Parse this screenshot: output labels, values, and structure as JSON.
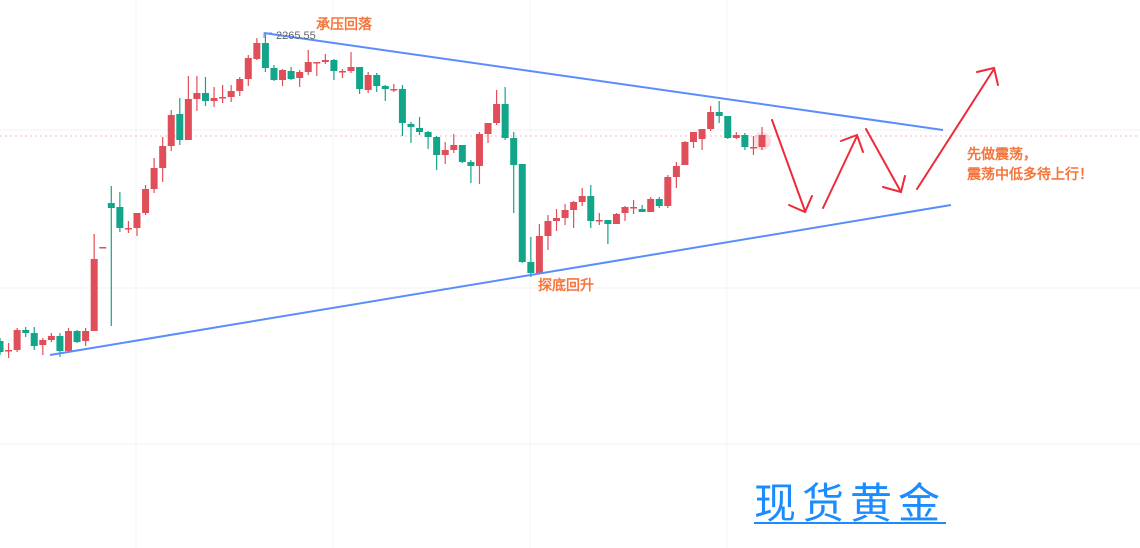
{
  "chart_data": {
    "type": "candlestick",
    "title": "",
    "up_color": "#e04e5a",
    "down_color": "#12a58a",
    "trendline_color": "#5b8cff",
    "arrow_color": "#ee2a3a",
    "annotation_color": "#f5763d",
    "grid": true,
    "high_label": "2265.55",
    "current_price_line": 2214.6,
    "candles_ohlc": [
      [
        2112.1,
        2113.6,
        2105.1,
        2106.6
      ],
      [
        2107.6,
        2111.1,
        2103.6,
        2107.6
      ],
      [
        2107.6,
        2118.6,
        2106.6,
        2117.6
      ],
      [
        2117.6,
        2119.1,
        2114.1,
        2116.1
      ],
      [
        2116.1,
        2119.1,
        2107.6,
        2109.6
      ],
      [
        2110.1,
        2113.6,
        2105.1,
        2112.6
      ],
      [
        2112.6,
        2116.1,
        2111.6,
        2114.6
      ],
      [
        2114.6,
        2116.1,
        2104.1,
        2107.1
      ],
      [
        2107.1,
        2118.6,
        2106.1,
        2117.1
      ],
      [
        2117.1,
        2117.6,
        2111.1,
        2111.6
      ],
      [
        2112.1,
        2118.6,
        2109.6,
        2117.1
      ],
      [
        2117.1,
        2165.6,
        2117.1,
        2153.1
      ],
      [
        2159.1,
        2159.1,
        2159.1,
        2159.1
      ],
      [
        2181.1,
        2189.6,
        2119.6,
        2178.6
      ],
      [
        2179.1,
        2186.6,
        2166.6,
        2168.6
      ],
      [
        2168.6,
        2172.1,
        2166.1,
        2168.6
      ],
      [
        2168.6,
        2176.1,
        2164.6,
        2176.1
      ],
      [
        2176.1,
        2190.1,
        2175.1,
        2188.1
      ],
      [
        2188.1,
        2203.6,
        2186.1,
        2198.6
      ],
      [
        2198.6,
        2214.1,
        2191.6,
        2209.6
      ],
      [
        2209.6,
        2227.6,
        2207.1,
        2225.1
      ],
      [
        2225.6,
        2233.6,
        2210.1,
        2212.6
      ],
      [
        2212.6,
        2244.6,
        2212.6,
        2233.1
      ],
      [
        2233.1,
        2244.6,
        2227.1,
        2236.1
      ],
      [
        2236.1,
        2244.1,
        2229.6,
        2232.1
      ],
      [
        2232.1,
        2239.1,
        2229.1,
        2233.6
      ],
      [
        2234.1,
        2240.1,
        2231.1,
        2234.1
      ],
      [
        2234.1,
        2240.1,
        2231.6,
        2237.1
      ],
      [
        2237.1,
        2244.1,
        2234.6,
        2243.1
      ],
      [
        2243.1,
        2255.1,
        2239.6,
        2253.6
      ],
      [
        2253.1,
        2263.6,
        2252.6,
        2261.1
      ],
      [
        2261.1,
        2265.6,
        2246.6,
        2248.6
      ],
      [
        2248.6,
        2250.1,
        2242.1,
        2242.6
      ],
      [
        2242.6,
        2248.1,
        2239.6,
        2247.6
      ],
      [
        2247.1,
        2249.1,
        2242.6,
        2243.1
      ],
      [
        2243.6,
        2247.6,
        2239.1,
        2246.6
      ],
      [
        2246.6,
        2257.6,
        2245.1,
        2251.6
      ],
      [
        2251.6,
        2251.6,
        2244.6,
        2251.6
      ],
      [
        2251.6,
        2255.6,
        2250.6,
        2252.6
      ],
      [
        2252.6,
        2253.1,
        2242.6,
        2247.1
      ],
      [
        2247.1,
        2248.1,
        2243.6,
        2247.1
      ],
      [
        2247.1,
        2256.6,
        2246.1,
        2249.1
      ],
      [
        2249.1,
        2249.1,
        2235.6,
        2238.1
      ],
      [
        2237.6,
        2246.6,
        2236.1,
        2245.1
      ],
      [
        2245.1,
        2246.1,
        2236.6,
        2239.6
      ],
      [
        2239.6,
        2240.1,
        2232.1,
        2238.1
      ],
      [
        2238.1,
        2240.6,
        2236.6,
        2238.1
      ],
      [
        2238.1,
        2240.1,
        2214.6,
        2221.1
      ],
      [
        2220.6,
        2221.6,
        2211.1,
        2219.1
      ],
      [
        2218.6,
        2224.1,
        2215.1,
        2216.6
      ],
      [
        2216.6,
        2217.1,
        2208.1,
        2214.1
      ],
      [
        2214.1,
        2214.6,
        2197.6,
        2205.1
      ],
      [
        2205.1,
        2211.6,
        2200.6,
        2207.6
      ],
      [
        2207.6,
        2215.6,
        2206.1,
        2210.1
      ],
      [
        2210.1,
        2210.1,
        2201.1,
        2201.6
      ],
      [
        2201.6,
        2202.6,
        2191.1,
        2199.6
      ],
      [
        2199.6,
        2216.6,
        2190.6,
        2215.6
      ],
      [
        2215.6,
        2221.1,
        2211.1,
        2221.1
      ],
      [
        2221.1,
        2237.6,
        2220.1,
        2230.6
      ],
      [
        2230.6,
        2239.1,
        2212.6,
        2213.6
      ],
      [
        2213.6,
        2216.6,
        2176.1,
        2200.1
      ],
      [
        2200.6,
        2200.6,
        2151.1,
        2151.6
      ],
      [
        2151.6,
        2164.1,
        2144.1,
        2146.1
      ],
      [
        2146.1,
        2170.6,
        2146.1,
        2164.6
      ],
      [
        2164.6,
        2175.1,
        2157.6,
        2172.1
      ],
      [
        2172.1,
        2178.1,
        2167.1,
        2173.6
      ],
      [
        2173.6,
        2180.6,
        2170.1,
        2177.6
      ],
      [
        2177.6,
        2182.1,
        2168.6,
        2181.6
      ],
      [
        2181.6,
        2188.6,
        2179.6,
        2184.6
      ],
      [
        2184.6,
        2190.1,
        2168.6,
        2172.1
      ],
      [
        2172.6,
        2176.1,
        2170.1,
        2172.6
      ],
      [
        2172.6,
        2172.6,
        2160.6,
        2170.6
      ],
      [
        2170.6,
        2176.1,
        2170.6,
        2175.6
      ],
      [
        2176.1,
        2179.6,
        2172.1,
        2179.1
      ],
      [
        2179.1,
        2182.6,
        2175.6,
        2179.1
      ],
      [
        2178.1,
        2180.1,
        2176.6,
        2176.6
      ],
      [
        2176.6,
        2184.1,
        2176.6,
        2183.1
      ],
      [
        2183.1,
        2184.1,
        2178.6,
        2179.6
      ],
      [
        2179.6,
        2195.1,
        2178.6,
        2194.1
      ],
      [
        2194.1,
        2201.6,
        2188.6,
        2199.6
      ],
      [
        2200.1,
        2212.1,
        2200.1,
        2211.6
      ],
      [
        2211.6,
        2216.6,
        2208.6,
        2216.6
      ],
      [
        2213.1,
        2218.1,
        2207.6,
        2218.1
      ],
      [
        2218.1,
        2229.6,
        2217.1,
        2226.6
      ],
      [
        2226.6,
        2232.1,
        2221.1,
        2224.6
      ],
      [
        2224.6,
        2224.6,
        2213.1,
        2213.6
      ],
      [
        2213.6,
        2216.6,
        2213.1,
        2215.1
      ],
      [
        2215.1,
        2216.1,
        2207.6,
        2209.1
      ],
      [
        2209.1,
        2214.6,
        2205.1,
        2209.1
      ],
      [
        2209.1,
        2219.1,
        2207.6,
        2215.1
      ]
    ],
    "annotations": {
      "top": "承压回落",
      "bottom": "探底回升",
      "outlook_line1": "先做震荡，",
      "outlook_line2": "震荡中低多待上行！"
    }
  },
  "brand": {
    "text": "现货黄金",
    "color": "#1a8cff"
  }
}
